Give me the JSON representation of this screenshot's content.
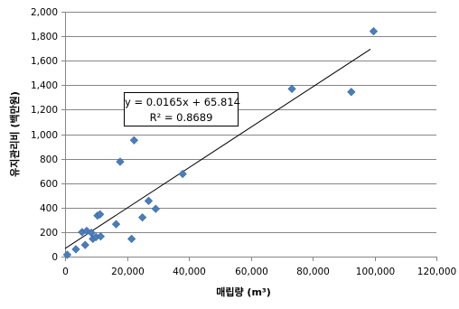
{
  "chart_data": {
    "type": "scatter",
    "xlabel": "매립량",
    "xunit": "(m³)",
    "ylabel": "유지관리비 (백만원)",
    "xlim": [
      0,
      120000
    ],
    "ylim": [
      0,
      2000
    ],
    "xticks": [
      0,
      20000,
      40000,
      60000,
      80000,
      100000,
      120000
    ],
    "yticks": [
      0,
      200,
      400,
      600,
      800,
      1000,
      1200,
      1400,
      1600,
      1800,
      2000
    ],
    "xtick_labels": [
      "0",
      "20,000",
      "40,000",
      "60,000",
      "80,000",
      "100,000",
      "120,000"
    ],
    "ytick_labels": [
      "0",
      "200",
      "400",
      "600",
      "800",
      "1,000",
      "1,200",
      "1,400",
      "1,600",
      "1,800",
      "2,000"
    ],
    "grid": "horizontal",
    "marker_color": "#4a7ebb",
    "series": [
      {
        "points": [
          [
            700,
            15
          ],
          [
            3500,
            60
          ],
          [
            5500,
            200
          ],
          [
            6500,
            95
          ],
          [
            7000,
            210
          ],
          [
            8500,
            195
          ],
          [
            9000,
            145
          ],
          [
            10000,
            160
          ],
          [
            10500,
            335
          ],
          [
            11300,
            345
          ],
          [
            11500,
            165
          ],
          [
            16500,
            265
          ],
          [
            17800,
            775
          ],
          [
            21500,
            145
          ],
          [
            22300,
            950
          ],
          [
            25000,
            320
          ],
          [
            27000,
            455
          ],
          [
            29300,
            390
          ],
          [
            38000,
            675
          ],
          [
            73300,
            1370
          ],
          [
            92500,
            1345
          ],
          [
            99700,
            1840
          ]
        ]
      }
    ],
    "trendline": {
      "slope": 0.0165,
      "intercept": 65.814,
      "x_range": [
        0,
        98700
      ],
      "color": "#000000"
    },
    "annotation": {
      "equation": "y = 0.0165x + 65.814",
      "r2": "R² = 0.8689"
    }
  }
}
